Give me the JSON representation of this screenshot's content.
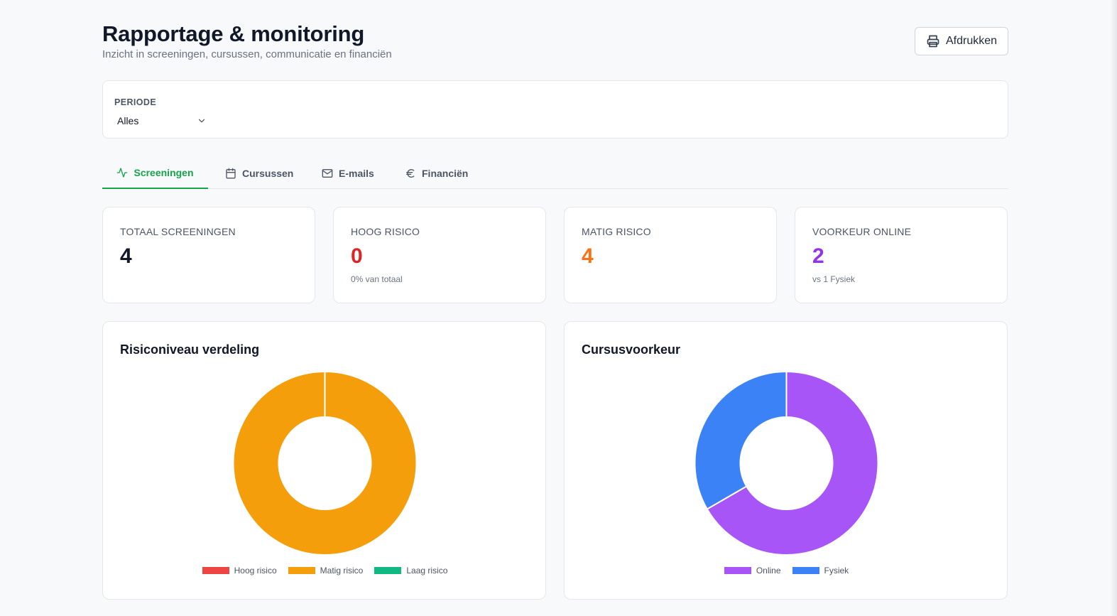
{
  "header": {
    "title": "Rapportage & monitoring",
    "subtitle": "Inzicht in screeningen, cursussen, communicatie en financiën",
    "print_label": "Afdrukken"
  },
  "filter": {
    "label": "PERIODE",
    "selected": "Alles"
  },
  "tabs": [
    {
      "label": "Screeningen",
      "icon": "activity-icon",
      "active": true
    },
    {
      "label": "Cursussen",
      "icon": "calendar-icon",
      "active": false
    },
    {
      "label": "E-mails",
      "icon": "mail-icon",
      "active": false
    },
    {
      "label": "Financiën",
      "icon": "euro-icon",
      "active": false
    }
  ],
  "stats": [
    {
      "label": "TOTAAL SCREENINGEN",
      "value": "4",
      "sub": "",
      "color": "#111827"
    },
    {
      "label": "HOOG RISICO",
      "value": "0",
      "sub": "0% van totaal",
      "color": "#dc2626"
    },
    {
      "label": "MATIG RISICO",
      "value": "4",
      "sub": "",
      "color": "#f97316"
    },
    {
      "label": "VOORKEUR ONLINE",
      "value": "2",
      "sub": "vs 1 Fysiek",
      "color": "#9333ea"
    }
  ],
  "chart_data": [
    {
      "type": "pie",
      "title": "Risiconiveau verdeling",
      "categories": [
        "Hoog risico",
        "Matig risico",
        "Laag risico"
      ],
      "values": [
        0,
        4,
        0
      ],
      "colors": [
        "#ef4444",
        "#f59e0b",
        "#10b981"
      ],
      "legend": "bottom"
    },
    {
      "type": "pie",
      "title": "Cursusvoorkeur",
      "categories": [
        "Online",
        "Fysiek"
      ],
      "values": [
        2,
        1
      ],
      "colors": [
        "#a855f7",
        "#3b82f6"
      ],
      "legend": "bottom"
    }
  ]
}
